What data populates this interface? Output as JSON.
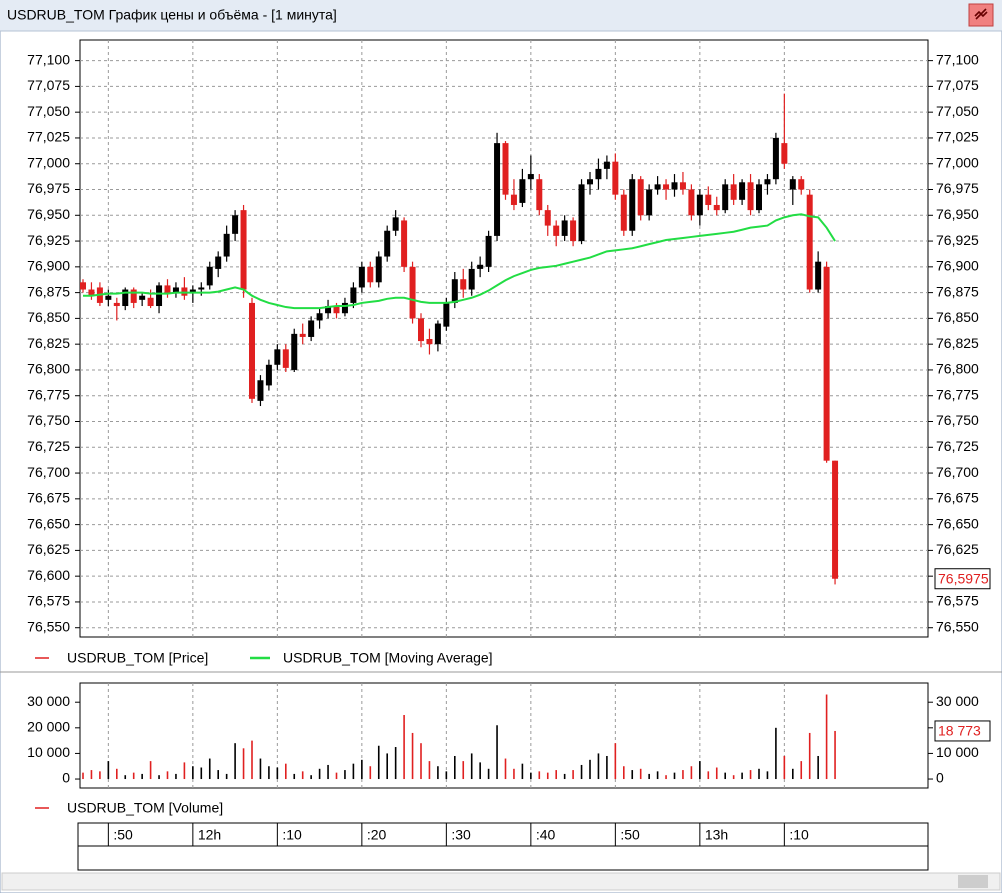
{
  "window": {
    "title": "USDRUB_TOM График цены и объёма - [1 минута]"
  },
  "chart_data": [
    {
      "type": "candlestick",
      "categories": [
        null,
        null,
        null,
        ":50",
        null,
        null,
        null,
        null,
        null,
        null,
        null,
        null,
        null,
        "12h",
        null,
        null,
        null,
        null,
        null,
        null,
        null,
        null,
        null,
        ":10",
        null,
        null,
        null,
        null,
        null,
        null,
        null,
        null,
        null,
        ":20",
        null,
        null,
        null,
        null,
        null,
        null,
        null,
        null,
        null,
        ":30",
        null,
        null,
        null,
        null,
        null,
        null,
        null,
        null,
        null,
        ":40",
        null,
        null,
        null,
        null,
        null,
        null,
        null,
        null,
        null,
        ":50",
        null,
        null,
        null,
        null,
        null,
        null,
        null,
        null,
        null,
        "13h",
        null,
        null,
        null,
        null,
        null,
        null,
        null,
        null,
        null,
        ":10",
        null,
        null,
        null,
        null,
        null,
        null
      ],
      "series": [
        {
          "name": "USDRUB_TOM [Price]",
          "color": "#e02020",
          "up_color": "#000000",
          "open": [
            76.885,
            76.878,
            76.88,
            76.868,
            76.865,
            76.862,
            76.878,
            76.868,
            76.87,
            76.862,
            76.882,
            76.875,
            76.88,
            76.875,
            76.878,
            76.882,
            76.898,
            76.91,
            76.932,
            76.955,
            76.865,
            76.77,
            76.785,
            76.805,
            76.82,
            76.8,
            76.835,
            76.832,
            76.848,
            76.855,
            76.862,
            76.855,
            76.865,
            76.88,
            76.9,
            76.885,
            76.91,
            76.935,
            76.945,
            76.9,
            76.85,
            76.83,
            76.825,
            76.842,
            76.865,
            76.888,
            76.878,
            76.898,
            76.9,
            76.93,
            77.02,
            76.97,
            76.962,
            76.985,
            76.985,
            76.955,
            76.94,
            76.93,
            76.945,
            76.925,
            76.98,
            76.985,
            76.995,
            77.002,
            76.97,
            76.935,
            76.985,
            76.95,
            76.975,
            76.98,
            76.975,
            76.982,
            76.975,
            76.95,
            76.97,
            76.96,
            76.955,
            76.98,
            76.965,
            76.982,
            76.955,
            76.98,
            76.985,
            77.02,
            76.975,
            76.985,
            76.97,
            76.878,
            76.9,
            76.712
          ],
          "high": [
            76.888,
            76.885,
            76.885,
            76.878,
            76.87,
            76.88,
            76.88,
            76.875,
            76.878,
            76.885,
            76.888,
            76.885,
            76.89,
            76.882,
            76.885,
            76.905,
            76.915,
            76.94,
            76.955,
            76.96,
            76.87,
            76.795,
            76.81,
            76.825,
            76.825,
            76.84,
            76.845,
            76.852,
            76.86,
            76.868,
            76.865,
            76.87,
            76.885,
            76.905,
            76.905,
            76.915,
            76.94,
            76.955,
            76.948,
            76.905,
            76.855,
            76.84,
            76.848,
            76.87,
            76.895,
            76.898,
            76.905,
            76.91,
            76.935,
            77.03,
            77.022,
            76.985,
            76.995,
            77.008,
            76.99,
            76.96,
            76.945,
            76.95,
            76.948,
            76.985,
            76.992,
            77.005,
            77.008,
            77.01,
            76.975,
            76.99,
            76.988,
            76.98,
            76.988,
            76.985,
            76.99,
            76.992,
            76.98,
            76.975,
            76.978,
            76.968,
            76.985,
            76.99,
            76.985,
            76.99,
            76.985,
            76.99,
            77.03,
            77.068,
            76.988,
            76.988,
            76.975,
            76.915,
            76.905,
            76.712
          ],
          "low": [
            76.875,
            76.868,
            76.862,
            76.862,
            76.848,
            76.858,
            76.86,
            76.862,
            76.86,
            76.855,
            76.87,
            76.87,
            76.868,
            76.865,
            76.872,
            76.878,
            76.89,
            76.905,
            76.925,
            76.87,
            76.768,
            76.765,
            76.78,
            76.8,
            76.798,
            76.798,
            76.825,
            76.828,
            76.84,
            76.85,
            76.85,
            76.852,
            76.86,
            76.875,
            76.88,
            76.88,
            76.905,
            76.93,
            76.895,
            76.845,
            76.822,
            76.815,
            76.818,
            76.838,
            76.86,
            76.87,
            76.872,
            76.89,
            76.895,
            76.925,
            76.965,
            76.955,
            76.958,
            76.975,
            76.95,
            76.93,
            76.92,
            76.925,
            76.92,
            76.922,
            76.97,
            76.975,
            76.985,
            76.965,
            76.93,
            76.93,
            76.945,
            76.945,
            76.97,
            76.965,
            76.968,
            76.97,
            76.945,
            76.94,
            76.955,
            76.95,
            76.952,
            76.96,
            76.96,
            76.95,
            76.952,
            76.97,
            76.98,
            76.995,
            76.96,
            76.97,
            76.875,
            76.875,
            76.71,
            76.592
          ],
          "close": [
            76.878,
            76.872,
            76.865,
            76.872,
            76.862,
            76.878,
            76.865,
            76.872,
            76.862,
            76.882,
            76.875,
            76.88,
            76.872,
            76.878,
            76.88,
            76.9,
            76.91,
            76.932,
            76.95,
            76.878,
            76.772,
            76.79,
            76.805,
            76.82,
            76.802,
            76.835,
            76.832,
            76.848,
            76.855,
            76.862,
            76.855,
            76.865,
            76.88,
            76.9,
            76.885,
            76.91,
            76.935,
            76.948,
            76.9,
            76.85,
            76.828,
            76.825,
            76.845,
            76.865,
            76.888,
            76.878,
            76.898,
            76.902,
            76.93,
            77.02,
            76.97,
            76.96,
            76.985,
            76.99,
            76.955,
            76.94,
            76.93,
            76.945,
            76.925,
            76.98,
            76.985,
            76.995,
            77.002,
            76.97,
            76.935,
            76.985,
            76.95,
            76.975,
            76.98,
            76.975,
            76.982,
            76.975,
            76.95,
            76.97,
            76.96,
            76.955,
            76.98,
            76.965,
            76.982,
            76.955,
            76.98,
            76.985,
            77.025,
            77.0,
            76.985,
            76.975,
            76.878,
            76.905,
            76.712,
            76.5975
          ]
        },
        {
          "name": "USDRUB_TOM [Moving Average]",
          "color": "#22dd44",
          "values": [
            76.872,
            76.872,
            76.873,
            76.874,
            76.874,
            76.875,
            76.875,
            76.875,
            76.874,
            76.874,
            76.874,
            76.875,
            76.875,
            76.875,
            76.875,
            76.875,
            76.876,
            76.878,
            76.88,
            76.878,
            76.872,
            76.868,
            76.865,
            76.863,
            76.861,
            76.86,
            76.86,
            76.86,
            76.86,
            76.861,
            76.862,
            76.862,
            76.863,
            76.865,
            76.866,
            76.867,
            76.869,
            76.87,
            76.87,
            76.868,
            76.866,
            76.865,
            76.865,
            76.865,
            76.866,
            76.868,
            76.87,
            76.873,
            76.877,
            76.882,
            76.887,
            76.891,
            76.894,
            76.897,
            76.899,
            76.9,
            76.901,
            76.903,
            76.905,
            76.907,
            76.909,
            76.912,
            76.915,
            76.916,
            76.917,
            76.918,
            76.92,
            76.922,
            76.924,
            76.926,
            76.927,
            76.928,
            76.929,
            76.93,
            76.931,
            76.932,
            76.933,
            76.934,
            76.936,
            76.938,
            76.939,
            76.94,
            76.945,
            76.948,
            76.95,
            76.951,
            76.949,
            76.948,
            76.938,
            76.925
          ]
        }
      ],
      "last_label": "76,5975",
      "ylim": [
        76.541,
        77.12
      ],
      "yticks": [
        {
          "value": 77.1,
          "label": "77,100"
        },
        {
          "value": 77.075,
          "label": "77,075"
        },
        {
          "value": 77.05,
          "label": "77,050"
        },
        {
          "value": 77.025,
          "label": "77,025"
        },
        {
          "value": 77.0,
          "label": "77,000"
        },
        {
          "value": 76.975,
          "label": "76,975"
        },
        {
          "value": 76.95,
          "label": "76,950"
        },
        {
          "value": 76.925,
          "label": "76,925"
        },
        {
          "value": 76.9,
          "label": "76,900"
        },
        {
          "value": 76.875,
          "label": "76,875"
        },
        {
          "value": 76.85,
          "label": "76,850"
        },
        {
          "value": 76.825,
          "label": "76,825"
        },
        {
          "value": 76.8,
          "label": "76,800"
        },
        {
          "value": 76.775,
          "label": "76,775"
        },
        {
          "value": 76.75,
          "label": "76,750"
        },
        {
          "value": 76.725,
          "label": "76,725"
        },
        {
          "value": 76.7,
          "label": "76,700"
        },
        {
          "value": 76.675,
          "label": "76,675"
        },
        {
          "value": 76.65,
          "label": "76,650"
        },
        {
          "value": 76.625,
          "label": "76,625"
        },
        {
          "value": 76.6,
          "label": "76,600"
        },
        {
          "value": 76.575,
          "label": "76,575"
        },
        {
          "value": 76.55,
          "label": "76,550"
        }
      ],
      "grid": true
    },
    {
      "type": "bar",
      "series": [
        {
          "name": "USDRUB_TOM [Volume]",
          "color": "#e02020",
          "up_color": "#000000",
          "values": [
            2500,
            3500,
            3000,
            7000,
            4000,
            1500,
            2500,
            2000,
            7000,
            1500,
            3000,
            2000,
            6500,
            5000,
            4500,
            8000,
            3500,
            2000,
            14000,
            12000,
            15000,
            8000,
            5000,
            4500,
            6000,
            2000,
            3000,
            1500,
            4000,
            5500,
            2500,
            3500,
            6000,
            7500,
            5000,
            13000,
            10000,
            12500,
            25000,
            18000,
            14000,
            7000,
            5000,
            3000,
            9000,
            7000,
            10000,
            6500,
            4000,
            21000,
            8000,
            4000,
            6000,
            2500,
            3000,
            2500,
            3500,
            2000,
            3500,
            5500,
            7500,
            10000,
            9000,
            14000,
            5000,
            3500,
            4000,
            2000,
            3000,
            1500,
            2500,
            3500,
            5000,
            7000,
            3000,
            4500,
            2500,
            1500,
            2500,
            3500,
            4000,
            3000,
            20000,
            9000,
            4000,
            7000,
            18000,
            9000,
            33000,
            18773
          ]
        }
      ],
      "last_label": "18 773",
      "ylim": [
        -3500,
        37500
      ],
      "yticks": [
        0,
        {
          "value": 10000,
          "label": "10 000"
        },
        {
          "value": 20000,
          "label": "20 000"
        },
        {
          "value": 30000,
          "label": "30 000"
        }
      ],
      "grid": true
    }
  ]
}
